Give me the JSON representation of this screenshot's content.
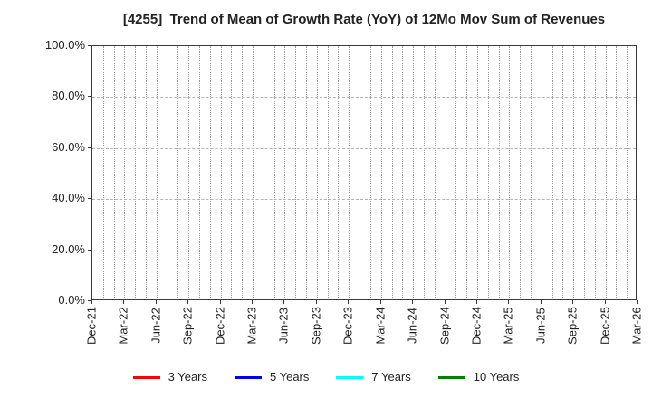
{
  "chart_data": {
    "type": "line",
    "title": "[4255]  Trend of Mean of Growth Rate (YoY) of 12Mo Mov Sum of Revenues",
    "xlabel": "",
    "ylabel": "",
    "ylim": [
      0,
      100
    ],
    "ytick_labels": [
      "100.0%",
      "80.0%",
      "60.0%",
      "40.0%",
      "20.0%",
      "0.0%"
    ],
    "ytick_values": [
      100,
      80,
      60,
      40,
      20,
      0
    ],
    "xtick_labels": [
      "Dec-21",
      "Mar-22",
      "Jun-22",
      "Sep-22",
      "Dec-22",
      "Mar-23",
      "Jun-23",
      "Sep-23",
      "Dec-23",
      "Mar-24",
      "Jun-24",
      "Sep-24",
      "Dec-24",
      "Mar-25",
      "Jun-25",
      "Sep-25",
      "Dec-25",
      "Mar-26"
    ],
    "months_per_xtick": 3,
    "grid": {
      "vertical": "dotted, one line per month",
      "horizontal": "dashed, every 20%",
      "vertical_color": "#979797",
      "horizontal_color": "#b4b4b4"
    },
    "axis_color": "#3a3a3a",
    "plot_empty": true,
    "legend_position": "bottom",
    "series": [
      {
        "name": "3 Years",
        "color": "#ff0000",
        "values": []
      },
      {
        "name": "5 Years",
        "color": "#0000ee",
        "values": []
      },
      {
        "name": "7 Years",
        "color": "#00ffff",
        "values": []
      },
      {
        "name": "10 Years",
        "color": "#008000",
        "values": []
      }
    ]
  }
}
